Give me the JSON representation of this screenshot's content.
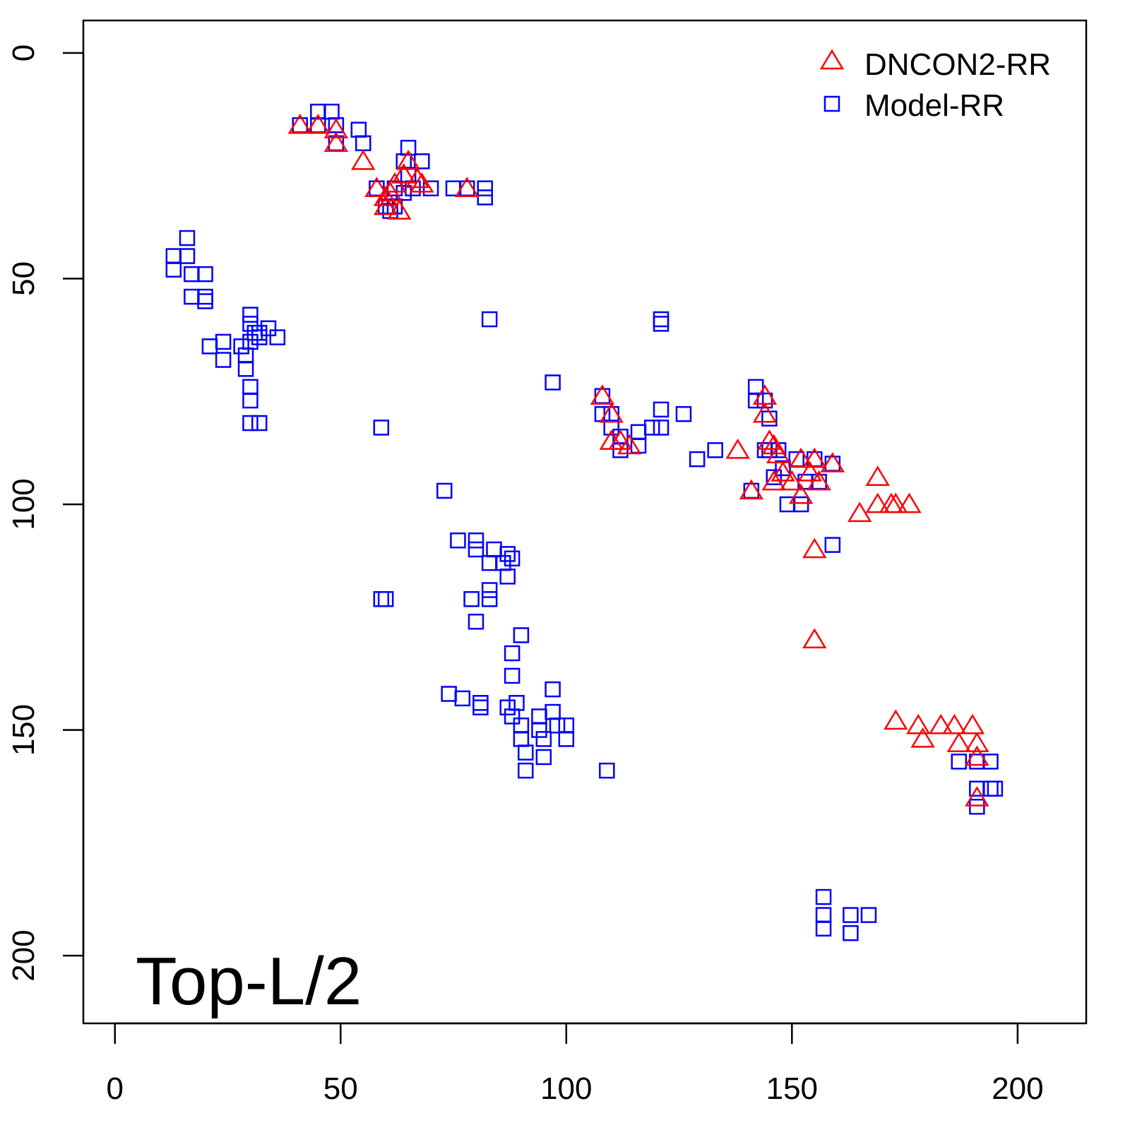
{
  "chart_data": {
    "type": "scatter",
    "title": "",
    "annotation": "Top-L/2",
    "xlabel": "",
    "ylabel": "",
    "xlim": [
      -7,
      215.2
    ],
    "ylim": [
      -7.2,
      215
    ],
    "y_reversed": true,
    "xticks": [
      0,
      50,
      100,
      150,
      200
    ],
    "yticks": [
      0,
      50,
      100,
      150,
      200
    ],
    "grid": false,
    "legend_position": "top-right",
    "series": [
      {
        "name": "DNCON2-RR",
        "marker": "triangle",
        "color": "#ff0000",
        "points": [
          [
            41,
            16
          ],
          [
            45,
            16
          ],
          [
            49,
            17
          ],
          [
            49,
            20
          ],
          [
            55,
            24
          ],
          [
            58,
            30
          ],
          [
            65,
            24
          ],
          [
            64,
            27
          ],
          [
            62,
            29
          ],
          [
            61,
            31
          ],
          [
            60,
            32
          ],
          [
            60,
            34
          ],
          [
            63,
            35
          ],
          [
            67,
            28
          ],
          [
            68,
            29
          ],
          [
            78,
            30
          ],
          [
            108,
            76
          ],
          [
            110,
            80
          ],
          [
            110,
            86
          ],
          [
            112,
            86
          ],
          [
            114,
            87
          ],
          [
            138,
            88
          ],
          [
            141,
            97
          ],
          [
            144,
            76
          ],
          [
            144,
            80
          ],
          [
            145,
            86
          ],
          [
            146,
            87
          ],
          [
            147,
            89
          ],
          [
            146,
            95
          ],
          [
            148,
            93
          ],
          [
            150,
            95
          ],
          [
            152,
            90
          ],
          [
            154,
            93
          ],
          [
            155,
            90
          ],
          [
            156,
            95
          ],
          [
            159,
            91
          ],
          [
            152,
            98
          ],
          [
            169,
            94
          ],
          [
            169,
            100
          ],
          [
            172,
            100
          ],
          [
            173,
            100
          ],
          [
            176,
            100
          ],
          [
            165,
            102
          ],
          [
            155,
            110
          ],
          [
            155,
            130
          ],
          [
            173,
            148
          ],
          [
            178,
            149
          ],
          [
            179,
            152
          ],
          [
            183,
            149
          ],
          [
            186,
            149
          ],
          [
            187,
            153
          ],
          [
            190,
            149
          ],
          [
            191,
            153
          ],
          [
            191,
            156
          ],
          [
            191,
            165
          ]
        ]
      },
      {
        "name": "Model-RR",
        "marker": "square",
        "color": "#0000ff",
        "points": [
          [
            41,
            16
          ],
          [
            45,
            13
          ],
          [
            48,
            13
          ],
          [
            45,
            16
          ],
          [
            49,
            16
          ],
          [
            49,
            20
          ],
          [
            54,
            17
          ],
          [
            55,
            20
          ],
          [
            65,
            21
          ],
          [
            64,
            24
          ],
          [
            68,
            24
          ],
          [
            65,
            27
          ],
          [
            58,
            30
          ],
          [
            62,
            30
          ],
          [
            66,
            30
          ],
          [
            70,
            30
          ],
          [
            75,
            30
          ],
          [
            78,
            30
          ],
          [
            82,
            30
          ],
          [
            82,
            32
          ],
          [
            60,
            34
          ],
          [
            62,
            34
          ],
          [
            64,
            31
          ],
          [
            61,
            35
          ],
          [
            16,
            41
          ],
          [
            13,
            45
          ],
          [
            16,
            45
          ],
          [
            13,
            48
          ],
          [
            17,
            49
          ],
          [
            20,
            49
          ],
          [
            17,
            54
          ],
          [
            20,
            54
          ],
          [
            20,
            55
          ],
          [
            30,
            58
          ],
          [
            31,
            62
          ],
          [
            34,
            61
          ],
          [
            36,
            63
          ],
          [
            32,
            63
          ],
          [
            30,
            64
          ],
          [
            28,
            65
          ],
          [
            21,
            65
          ],
          [
            24,
            64
          ],
          [
            24,
            68
          ],
          [
            29,
            67
          ],
          [
            29,
            70
          ],
          [
            30,
            74
          ],
          [
            30,
            77
          ],
          [
            30,
            82
          ],
          [
            32,
            82
          ],
          [
            30,
            60
          ],
          [
            32,
            62
          ],
          [
            59,
            83
          ],
          [
            83,
            59
          ],
          [
            73,
            97
          ],
          [
            97,
            73
          ],
          [
            121,
            59
          ],
          [
            121,
            60
          ],
          [
            76,
            108
          ],
          [
            80,
            108
          ],
          [
            80,
            110
          ],
          [
            84,
            110
          ],
          [
            83,
            113
          ],
          [
            87,
            111
          ],
          [
            88,
            112
          ],
          [
            86,
            113
          ],
          [
            87,
            116
          ],
          [
            83,
            119
          ],
          [
            83,
            121
          ],
          [
            79,
            121
          ],
          [
            59,
            121
          ],
          [
            60,
            121
          ],
          [
            80,
            126
          ],
          [
            90,
            129
          ],
          [
            88,
            133
          ],
          [
            88,
            138
          ],
          [
            97,
            141
          ],
          [
            74,
            142
          ],
          [
            77,
            143
          ],
          [
            81,
            144
          ],
          [
            81,
            145
          ],
          [
            87,
            145
          ],
          [
            89,
            144
          ],
          [
            88,
            147
          ],
          [
            94,
            147
          ],
          [
            97,
            146
          ],
          [
            90,
            149
          ],
          [
            94,
            150
          ],
          [
            98,
            149
          ],
          [
            100,
            149
          ],
          [
            90,
            152
          ],
          [
            95,
            152
          ],
          [
            100,
            152
          ],
          [
            91,
            155
          ],
          [
            95,
            156
          ],
          [
            91,
            159
          ],
          [
            109,
            159
          ],
          [
            108,
            76
          ],
          [
            108,
            80
          ],
          [
            110,
            80
          ],
          [
            110,
            83
          ],
          [
            112,
            85
          ],
          [
            116,
            84
          ],
          [
            116,
            87
          ],
          [
            112,
            88
          ],
          [
            119,
            83
          ],
          [
            121,
            83
          ],
          [
            121,
            79
          ],
          [
            126,
            80
          ],
          [
            133,
            88
          ],
          [
            129,
            90
          ],
          [
            142,
            74
          ],
          [
            142,
            77
          ],
          [
            144,
            77
          ],
          [
            145,
            81
          ],
          [
            144,
            88
          ],
          [
            145,
            88
          ],
          [
            147,
            88
          ],
          [
            141,
            97
          ],
          [
            146,
            94
          ],
          [
            148,
            92
          ],
          [
            151,
            90
          ],
          [
            155,
            90
          ],
          [
            159,
            91
          ],
          [
            149,
            100
          ],
          [
            152,
            100
          ],
          [
            153,
            95
          ],
          [
            156,
            95
          ],
          [
            159,
            109
          ],
          [
            187,
            157
          ],
          [
            191,
            157
          ],
          [
            194,
            157
          ],
          [
            191,
            163
          ],
          [
            194,
            163
          ],
          [
            195,
            163
          ],
          [
            191,
            167
          ],
          [
            157,
            187
          ],
          [
            157,
            191
          ],
          [
            157,
            194
          ],
          [
            163,
            191
          ],
          [
            167,
            191
          ],
          [
            163,
            195
          ]
        ]
      }
    ]
  }
}
